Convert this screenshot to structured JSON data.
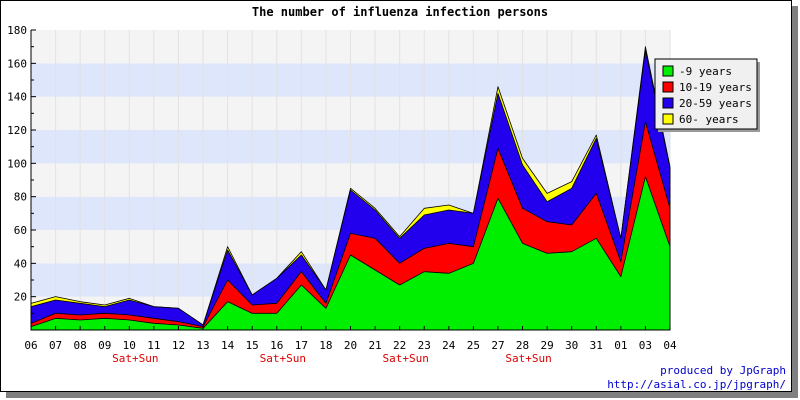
{
  "chart_data": {
    "type": "area",
    "stacked": true,
    "title": "The number of influenza infection persons",
    "xlabel": "",
    "ylabel": "",
    "ylim": [
      0,
      180
    ],
    "yticks": [
      20,
      40,
      60,
      80,
      100,
      120,
      140,
      160,
      180
    ],
    "grid": "horizontal bands",
    "legend_position": "top-right",
    "x": [
      "06",
      "07",
      "08",
      "09",
      "10",
      "11",
      "12",
      "13",
      "14",
      "15",
      "16",
      "17",
      "18",
      "20",
      "21",
      "22",
      "23",
      "24",
      "25",
      "27",
      "28",
      "29",
      "30",
      "31",
      "01",
      "03",
      "04"
    ],
    "weekend_label": "Sat+Sun",
    "weekend_positions": [
      "10",
      "16",
      "22",
      "28"
    ],
    "series": [
      {
        "name": "-9 years",
        "color": "#00ee00",
        "values": [
          2,
          7,
          6,
          7,
          6,
          4,
          3,
          1,
          17,
          10,
          10,
          27,
          13,
          45,
          36,
          27,
          35,
          34,
          40,
          79,
          52,
          46,
          47,
          55,
          32,
          92,
          50
        ]
      },
      {
        "name": "10-19 years",
        "color": "#ff0000",
        "values": [
          2,
          3,
          3,
          3,
          3,
          3,
          2,
          1,
          13,
          5,
          6,
          8,
          3,
          13,
          19,
          13,
          14,
          18,
          10,
          30,
          21,
          19,
          16,
          27,
          9,
          33,
          23
        ]
      },
      {
        "name": "20-59 years",
        "color": "#2200ee",
        "values": [
          10,
          8,
          7,
          4,
          9,
          7,
          8,
          1,
          18,
          6,
          15,
          10,
          8,
          26,
          17,
          15,
          20,
          20,
          20,
          33,
          26,
          12,
          22,
          33,
          14,
          43,
          24
        ]
      },
      {
        "name": "60- years",
        "color": "#ffff00",
        "values": [
          2,
          2,
          1,
          1,
          1,
          0,
          0,
          0,
          2,
          0,
          0,
          2,
          0,
          1,
          1,
          1,
          4,
          3,
          0,
          4,
          4,
          5,
          4,
          2,
          0,
          2,
          1
        ]
      }
    ]
  },
  "credit": {
    "line1": "produced by JpGraph",
    "line2": "http://asial.co.jp/jpgraph/"
  }
}
